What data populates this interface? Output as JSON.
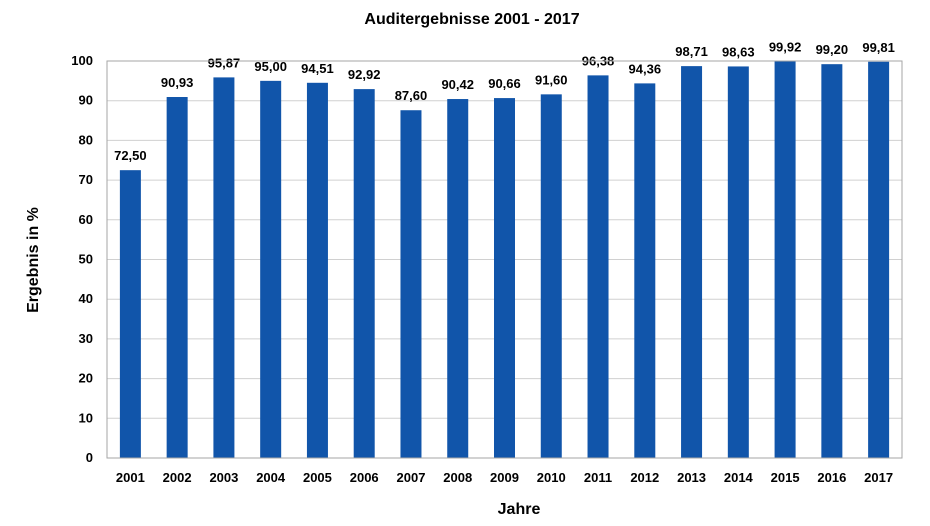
{
  "chart_data": {
    "type": "bar",
    "title": "Auditergebnisse 2001 - 2017",
    "xlabel": "Jahre",
    "ylabel": "Ergebnis in %",
    "categories": [
      "2001",
      "2002",
      "2003",
      "2004",
      "2005",
      "2006",
      "2007",
      "2008",
      "2009",
      "2010",
      "2011",
      "2012",
      "2013",
      "2014",
      "2015",
      "2016",
      "2017"
    ],
    "values": [
      72.5,
      90.93,
      95.87,
      95.0,
      94.51,
      92.92,
      87.6,
      90.42,
      90.66,
      91.6,
      96.38,
      94.36,
      98.71,
      98.63,
      99.92,
      99.2,
      99.81
    ],
    "value_labels": [
      "72,50",
      "90,93",
      "95,87",
      "95,00",
      "94,51",
      "92,92",
      "87,60",
      "90,42",
      "90,66",
      "91,60",
      "96,38",
      "94,36",
      "98,71",
      "98,63",
      "99,92",
      "99,20",
      "99,81"
    ],
    "ylim": [
      0,
      100
    ],
    "yticks": [
      "0",
      "10",
      "20",
      "30",
      "40",
      "50",
      "60",
      "70",
      "80",
      "90",
      "100"
    ],
    "grid": true,
    "legend": "none",
    "colors": {
      "bar": "#1155AA"
    }
  }
}
